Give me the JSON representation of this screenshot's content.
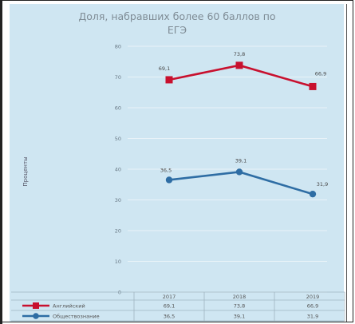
{
  "chart_data": {
    "type": "line",
    "title_line1": "Доля, набравших более 60 баллов по",
    "title_line2": "ЕГЭ",
    "ylabel": "Проценты",
    "ylim": [
      0,
      80
    ],
    "yticks": [
      "0",
      "10",
      "20",
      "30",
      "40",
      "50",
      "60",
      "70",
      "80"
    ],
    "categories": [
      "2017",
      "2018",
      "2019"
    ],
    "series": [
      {
        "name": "Английский",
        "values": [
          69.1,
          73.8,
          66.9
        ],
        "labels": [
          "69,1",
          "73,8",
          "66,9"
        ],
        "color": "#c8102e"
      },
      {
        "name": "Обществознание",
        "values": [
          36.5,
          39.1,
          31.9
        ],
        "labels": [
          "36,5",
          "39,1",
          "31,9"
        ],
        "color": "#2e6da4"
      }
    ],
    "grid": true,
    "legend_position": "bottom-table"
  }
}
